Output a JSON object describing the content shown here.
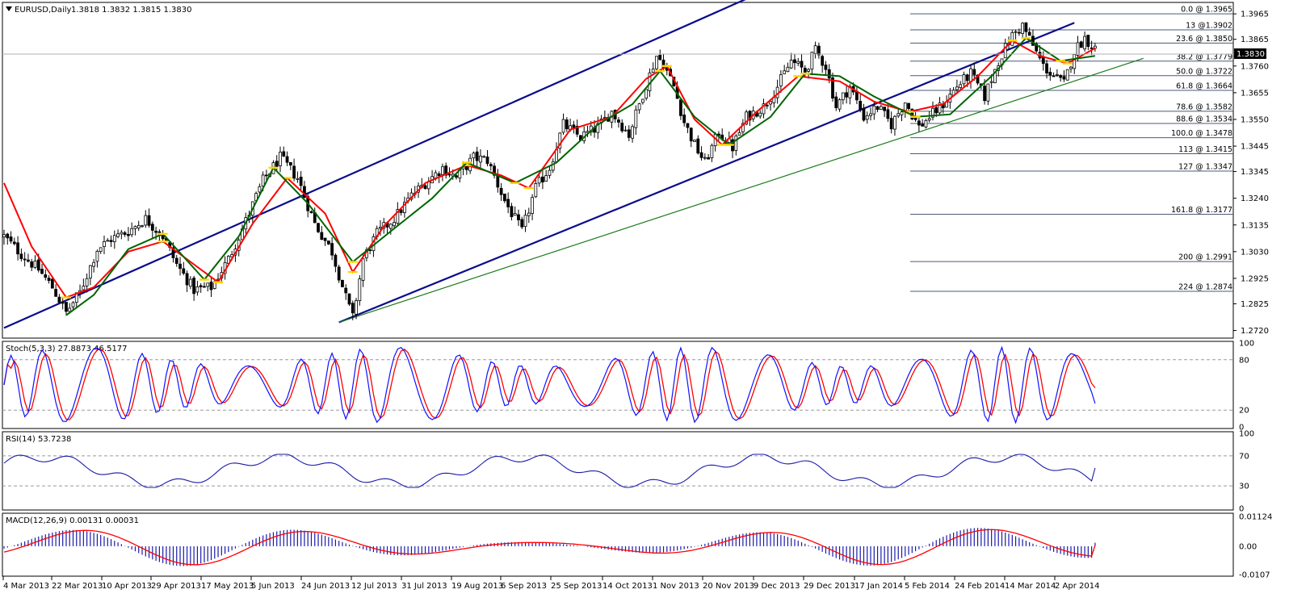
{
  "window": {
    "symbol_label": "EURUSD,Daily",
    "ohlc_label": "1.3818 1.3832 1.3815 1.3830",
    "current_price_tag": "1.3830"
  },
  "colors": {
    "channel": "#0b0b8c",
    "trendline": "#1a7a1a",
    "ma_fast_red": "#ff0000",
    "ma_green": "#006400",
    "ma_yellow": "#ffd700",
    "fib_line": "#4a5a78",
    "stoch_k": "#1010ff",
    "stoch_d": "#ff0000",
    "rsi": "#1a1aaa",
    "macd_hist": "#1a1aaa",
    "macd_signal": "#ff0000",
    "price_tag_bg": "#000000"
  },
  "chart_data": [
    {
      "type": "candlestick",
      "title": "EURUSD,Daily",
      "ohlc_last": {
        "open": 1.3818,
        "high": 1.3832,
        "low": 1.3815,
        "close": 1.383
      },
      "ylim": [
        1.269,
        1.401
      ],
      "y_ticks": [
        "1.3965",
        "1.3865",
        "1.3760",
        "1.3655",
        "1.3550",
        "1.3445",
        "1.3345",
        "1.3240",
        "1.3135",
        "1.3030",
        "1.2925",
        "1.2825",
        "1.2720"
      ],
      "x_ticks": [
        "4 Mar 2013",
        "22 Mar 2013",
        "10 Apr 2013",
        "29 Apr 2013",
        "17 May 2013",
        "5 Jun 2013",
        "24 Jun 2013",
        "12 Jul 2013",
        "31 Jul 2013",
        "19 Aug 2013",
        "6 Sep 2013",
        "25 Sep 2013",
        "14 Oct 2013",
        "1 Nov 2013",
        "20 Nov 2013",
        "9 Dec 2013",
        "29 Dec 2013",
        "17 Jan 2014",
        "5 Feb 2014",
        "24 Feb 2014",
        "14 Mar 2014",
        "2 Apr 2014"
      ],
      "close_path": [
        [
          0,
          1.309
        ],
        [
          5,
          1.302
        ],
        [
          10,
          1.296
        ],
        [
          14,
          1.289
        ],
        [
          18,
          1.279
        ],
        [
          22,
          1.287
        ],
        [
          27,
          1.304
        ],
        [
          31,
          1.308
        ],
        [
          36,
          1.311
        ],
        [
          41,
          1.316
        ],
        [
          46,
          1.309
        ],
        [
          50,
          1.298
        ],
        [
          55,
          1.288
        ],
        [
          60,
          1.289
        ],
        [
          65,
          1.3
        ],
        [
          70,
          1.315
        ],
        [
          75,
          1.331
        ],
        [
          80,
          1.34
        ],
        [
          85,
          1.332
        ],
        [
          90,
          1.314
        ],
        [
          95,
          1.303
        ],
        [
          99,
          1.285
        ],
        [
          101,
          1.277
        ],
        [
          104,
          1.3
        ],
        [
          108,
          1.31
        ],
        [
          113,
          1.316
        ],
        [
          118,
          1.325
        ],
        [
          122,
          1.33
        ],
        [
          127,
          1.336
        ],
        [
          131,
          1.332
        ],
        [
          136,
          1.34
        ],
        [
          140,
          1.339
        ],
        [
          145,
          1.323
        ],
        [
          150,
          1.311
        ],
        [
          154,
          1.328
        ],
        [
          158,
          1.336
        ],
        [
          162,
          1.353
        ],
        [
          167,
          1.348
        ],
        [
          172,
          1.352
        ],
        [
          176,
          1.358
        ],
        [
          181,
          1.349
        ],
        [
          185,
          1.365
        ],
        [
          189,
          1.38
        ],
        [
          191,
          1.377
        ],
        [
          194,
          1.368
        ],
        [
          197,
          1.354
        ],
        [
          200,
          1.345
        ],
        [
          203,
          1.338
        ],
        [
          207,
          1.35
        ],
        [
          211,
          1.344
        ],
        [
          215,
          1.356
        ],
        [
          220,
          1.36
        ],
        [
          224,
          1.368
        ],
        [
          228,
          1.378
        ],
        [
          232,
          1.374
        ],
        [
          235,
          1.382
        ],
        [
          238,
          1.376
        ],
        [
          241,
          1.36
        ],
        [
          245,
          1.368
        ],
        [
          249,
          1.356
        ],
        [
          253,
          1.36
        ],
        [
          257,
          1.353
        ],
        [
          261,
          1.362
        ],
        [
          265,
          1.352
        ],
        [
          268,
          1.356
        ],
        [
          272,
          1.361
        ],
        [
          276,
          1.368
        ],
        [
          280,
          1.373
        ],
        [
          284,
          1.364
        ],
        [
          288,
          1.378
        ],
        [
          292,
          1.388
        ],
        [
          295,
          1.392
        ],
        [
          298,
          1.384
        ],
        [
          301,
          1.376
        ],
        [
          304,
          1.372
        ],
        [
          307,
          1.369
        ],
        [
          310,
          1.382
        ],
        [
          313,
          1.387
        ],
        [
          316,
          1.383
        ]
      ],
      "ma_red_path": [
        [
          0,
          1.33
        ],
        [
          8,
          1.305
        ],
        [
          18,
          1.285
        ],
        [
          26,
          1.289
        ],
        [
          36,
          1.303
        ],
        [
          46,
          1.307
        ],
        [
          54,
          1.299
        ],
        [
          62,
          1.291
        ],
        [
          72,
          1.314
        ],
        [
          82,
          1.332
        ],
        [
          93,
          1.318
        ],
        [
          101,
          1.295
        ],
        [
          110,
          1.313
        ],
        [
          122,
          1.33
        ],
        [
          134,
          1.337
        ],
        [
          144,
          1.333
        ],
        [
          152,
          1.328
        ],
        [
          164,
          1.351
        ],
        [
          176,
          1.356
        ],
        [
          186,
          1.371
        ],
        [
          192,
          1.376
        ],
        [
          200,
          1.355
        ],
        [
          208,
          1.345
        ],
        [
          218,
          1.358
        ],
        [
          230,
          1.372
        ],
        [
          242,
          1.37
        ],
        [
          252,
          1.362
        ],
        [
          262,
          1.358
        ],
        [
          272,
          1.361
        ],
        [
          282,
          1.372
        ],
        [
          292,
          1.386
        ],
        [
          300,
          1.38
        ],
        [
          308,
          1.377
        ],
        [
          316,
          1.383
        ]
      ],
      "ma_green_path": [
        [
          18,
          1.278
        ],
        [
          26,
          1.286
        ],
        [
          36,
          1.304
        ],
        [
          46,
          1.31
        ],
        [
          58,
          1.292
        ],
        [
          68,
          1.309
        ],
        [
          78,
          1.336
        ],
        [
          88,
          1.322
        ],
        [
          101,
          1.299
        ],
        [
          112,
          1.311
        ],
        [
          124,
          1.324
        ],
        [
          134,
          1.338
        ],
        [
          148,
          1.33
        ],
        [
          160,
          1.338
        ],
        [
          172,
          1.353
        ],
        [
          182,
          1.361
        ],
        [
          190,
          1.374
        ],
        [
          200,
          1.356
        ],
        [
          210,
          1.345
        ],
        [
          222,
          1.356
        ],
        [
          232,
          1.373
        ],
        [
          242,
          1.372
        ],
        [
          252,
          1.364
        ],
        [
          264,
          1.356
        ],
        [
          274,
          1.357
        ],
        [
          286,
          1.372
        ],
        [
          296,
          1.387
        ],
        [
          306,
          1.378
        ],
        [
          316,
          1.38
        ]
      ],
      "channel_upper": [
        [
          0,
          1.273
        ],
        [
          216,
          1.403
        ]
      ],
      "channel_lower": [
        [
          97,
          1.2752
        ],
        [
          310,
          1.393
        ]
      ],
      "trendline": [
        [
          97,
          1.2752
        ],
        [
          330,
          1.379
        ]
      ],
      "fibonacci": [
        {
          "label": "0.0 @ 1.3965",
          "value": 1.3965
        },
        {
          "label": "13 @1.3902",
          "value": 1.3902
        },
        {
          "label": "23.6 @ 1.3850",
          "value": 1.385
        },
        {
          "label": "38.2 @ 1.3779",
          "value": 1.3779
        },
        {
          "label": "50.0 @ 1.3722",
          "value": 1.3722
        },
        {
          "label": "61.8 @ 1.3664",
          "value": 1.3664
        },
        {
          "label": "78.6 @ 1.3582",
          "value": 1.3582
        },
        {
          "label": "88.6 @ 1.3534",
          "value": 1.3534
        },
        {
          "label": "100.0 @ 1.3478",
          "value": 1.3478
        },
        {
          "label": "113 @ 1.3415",
          "value": 1.3415
        },
        {
          "label": "127 @ 1.3347",
          "value": 1.3347
        },
        {
          "label": "161.8 @ 1.3177",
          "value": 1.3177
        },
        {
          "label": "200 @ 1.2991",
          "value": 1.2991
        },
        {
          "label": "224 @ 1.2874",
          "value": 1.2874
        }
      ]
    },
    {
      "type": "line",
      "title": "Stoch(5,3,3) 27.8873 46.5177",
      "ylim": [
        0,
        100
      ],
      "y_ticks": [
        "100",
        "80",
        "20",
        "0"
      ],
      "levels": [
        80,
        20
      ],
      "series": [
        {
          "name": "Stoch(5,3,3) %K",
          "value": 27.8873
        },
        {
          "name": "Stoch(5,3,3) %D",
          "value": 46.5177
        }
      ]
    },
    {
      "type": "line",
      "title": "RSI(14) 53.7238",
      "ylim": [
        0,
        100
      ],
      "y_ticks": [
        "100",
        "70",
        "30",
        "0"
      ],
      "levels": [
        70,
        30
      ],
      "last_value": 53.7238
    },
    {
      "type": "bar",
      "title": "MACD(12,26,9) 0.00131 0.00031",
      "ylim": [
        -0.0107,
        0.01124
      ],
      "y_ticks": [
        "0.01124",
        "0.00",
        "-0.0107"
      ],
      "macd": 0.00131,
      "signal": 0.00031
    }
  ]
}
